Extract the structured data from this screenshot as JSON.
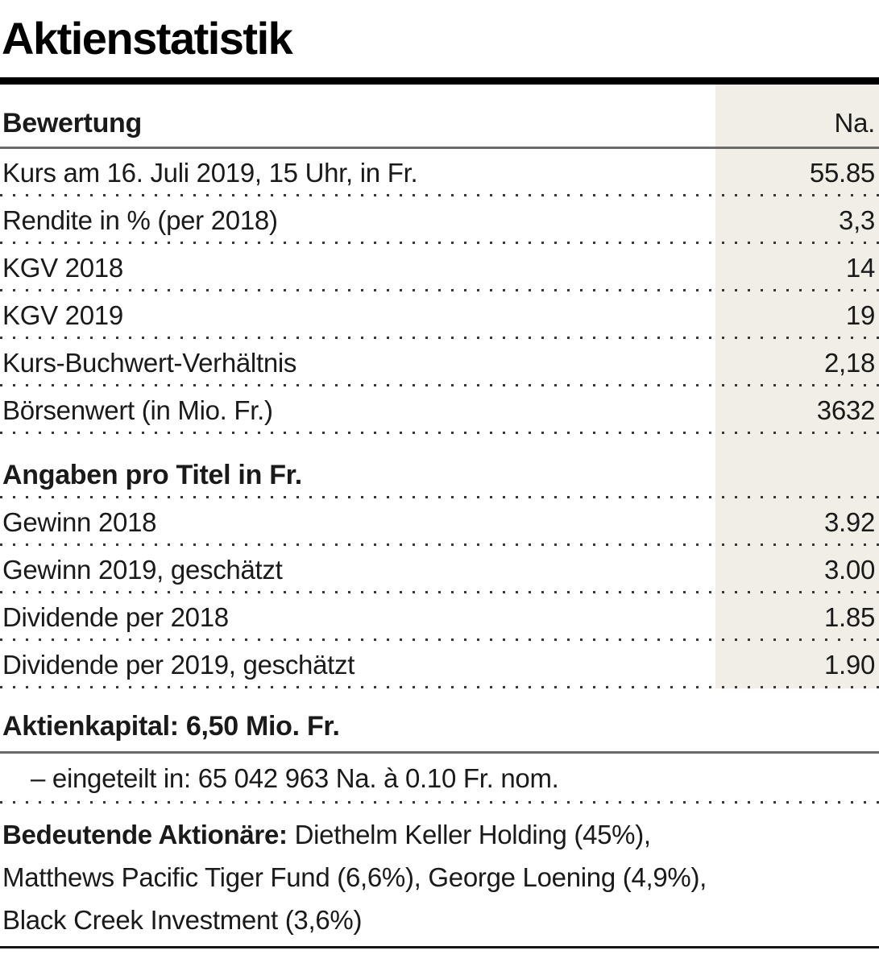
{
  "title": "Aktienstatistik",
  "table": {
    "header": {
      "label": "Bewertung",
      "value_header": "Na."
    },
    "rows1": [
      {
        "label": "Kurs am 16. Juli 2019, 15 Uhr, in Fr.",
        "value": "55.85"
      },
      {
        "label": "Rendite in % (per 2018)",
        "value": "3,3"
      },
      {
        "label": "KGV 2018",
        "value": "14"
      },
      {
        "label": "KGV 2019",
        "value": "19"
      },
      {
        "label": "Kurs-Buchwert-Verhältnis",
        "value": "2,18"
      },
      {
        "label": "Börsenwert (in Mio. Fr.)",
        "value": "3632"
      }
    ],
    "section2_header": "Angaben pro Titel in Fr.",
    "rows2": [
      {
        "label": "Gewinn 2018",
        "value": "3.92"
      },
      {
        "label": "Gewinn 2019, geschätzt",
        "value": "3.00"
      },
      {
        "label": "Dividende per 2018",
        "value": "1.85"
      },
      {
        "label": "Dividende per 2019, geschätzt",
        "value": "1.90"
      }
    ]
  },
  "capital": {
    "title": "Aktienkapital: 6,50 Mio. Fr.",
    "detail": "– eingeteilt in: 65 042 963 Na. à 0.10 Fr. nom."
  },
  "shareholders": {
    "label": "Bedeutende Aktionäre:",
    "line1_rest": " Diethelm Keller Holding (45%),",
    "line2": "Matthews Pacific Tiger Fund (6,6%), George Loening (4,9%),",
    "line3": "Black Creek Investment (3,6%)"
  },
  "colors": {
    "value_column_shade": "#f0eee7",
    "text": "#1a1a1a",
    "top_rule": "#000000",
    "thin_line": "#6a6a6a",
    "dot_leader": "#383838"
  }
}
